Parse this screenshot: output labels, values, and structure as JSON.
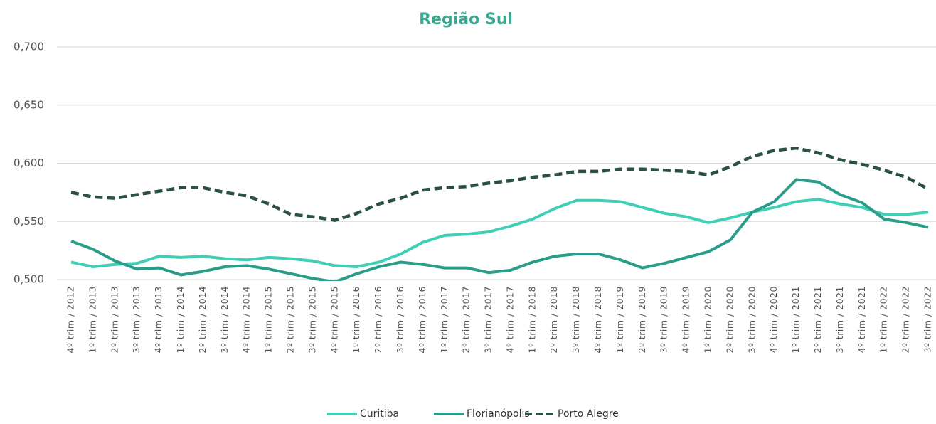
{
  "chart_data": {
    "type": "line",
    "title": "Região Sul",
    "categories": [
      "4º trim / 2012",
      "1º trim / 2013",
      "2º trim / 2013",
      "3º trim / 2013",
      "4º trim / 2013",
      "1º trim / 2014",
      "2º trim / 2014",
      "3º trim / 2014",
      "4º trim / 2014",
      "1º trim / 2015",
      "2º trim / 2015",
      "3º trim / 2015",
      "4º trim / 2015",
      "1º trim / 2016",
      "2º trim / 2016",
      "3º trim / 2016",
      "4º trim / 2016",
      "1º trim / 2017",
      "2º trim / 2017",
      "3º trim / 2017",
      "4º trim / 2017",
      "1º trim / 2018",
      "2º trim / 2018",
      "3º trim / 2018",
      "4º trim / 2018",
      "1º trim / 2019",
      "2º trim / 2019",
      "3º trim / 2019",
      "4º trim / 2019",
      "1º trim / 2020",
      "2º trim / 2020",
      "3º trim / 2020",
      "4º trim / 2020",
      "1º trim / 2021",
      "2º trim / 2021",
      "3º trim / 2021",
      "4º trim / 2021",
      "1º trim / 2022",
      "2º trim / 2022",
      "3º trim / 2022"
    ],
    "series": [
      {
        "name": "Curitiba",
        "color": "#3fcfb5",
        "dashed": false,
        "values": [
          0.515,
          0.511,
          0.513,
          0.514,
          0.52,
          0.519,
          0.52,
          0.518,
          0.517,
          0.519,
          0.518,
          0.516,
          0.512,
          0.511,
          0.515,
          0.522,
          0.532,
          0.538,
          0.539,
          0.541,
          0.546,
          0.552,
          0.561,
          0.568,
          0.568,
          0.567,
          0.562,
          0.557,
          0.554,
          0.549,
          0.553,
          0.558,
          0.562,
          0.567,
          0.569,
          0.565,
          0.562,
          0.556,
          0.556,
          0.558
        ]
      },
      {
        "name": "Florianópolis",
        "color": "#2a9d8a",
        "dashed": false,
        "values": [
          0.533,
          0.526,
          0.516,
          0.509,
          0.51,
          0.504,
          0.507,
          0.511,
          0.512,
          0.509,
          0.505,
          0.501,
          0.498,
          0.505,
          0.511,
          0.515,
          0.513,
          0.51,
          0.51,
          0.506,
          0.508,
          0.515,
          0.52,
          0.522,
          0.522,
          0.517,
          0.51,
          0.514,
          0.519,
          0.524,
          0.534,
          0.558,
          0.567,
          0.586,
          0.584,
          0.573,
          0.566,
          0.552,
          0.549,
          0.545
        ]
      },
      {
        "name": "Porto Alegre",
        "color": "#2d4f4a",
        "dashed": true,
        "values": [
          0.575,
          0.571,
          0.57,
          0.573,
          0.576,
          0.579,
          0.579,
          0.575,
          0.572,
          0.565,
          0.556,
          0.554,
          0.551,
          0.557,
          0.565,
          0.57,
          0.577,
          0.579,
          0.58,
          0.583,
          0.585,
          0.588,
          0.59,
          0.593,
          0.593,
          0.595,
          0.595,
          0.594,
          0.593,
          0.59,
          0.597,
          0.606,
          0.611,
          0.613,
          0.609,
          0.603,
          0.599,
          0.594,
          0.588,
          0.578
        ]
      }
    ],
    "ylim": [
      0.5,
      0.7
    ],
    "yticks": [
      {
        "value": 0.5,
        "label": "0,500"
      },
      {
        "value": 0.55,
        "label": "0,550"
      },
      {
        "value": 0.6,
        "label": "0,600"
      },
      {
        "value": 0.65,
        "label": "0,650"
      },
      {
        "value": 0.7,
        "label": "0,700"
      }
    ],
    "grid": true,
    "legend": "bottom"
  }
}
